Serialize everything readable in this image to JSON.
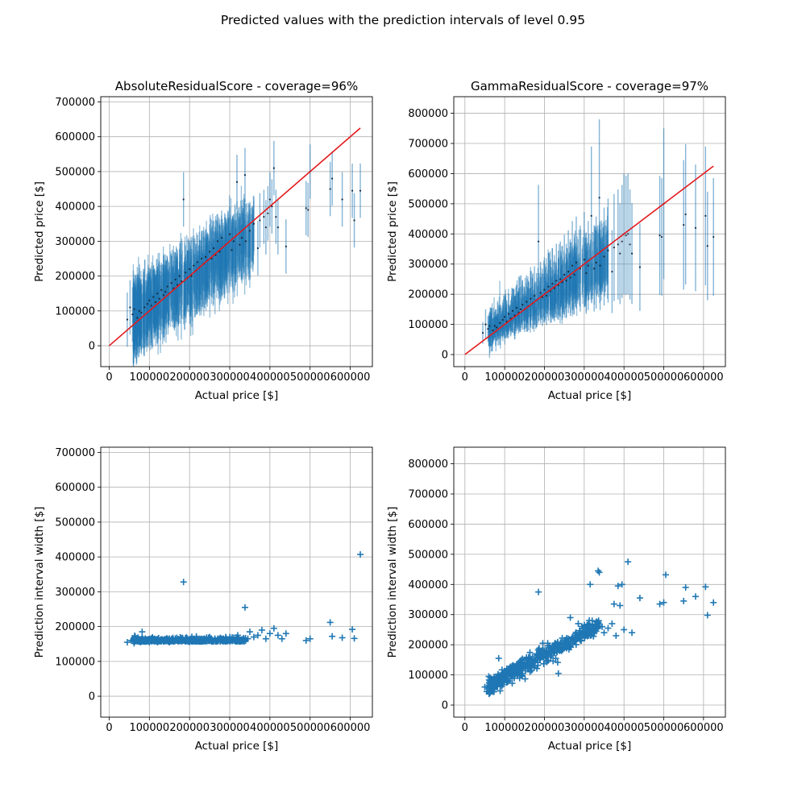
{
  "figure": {
    "title": "Predicted values with the prediction intervals of level 0.95"
  },
  "chart_data": [
    {
      "type": "scatter",
      "variant": "errorbar",
      "title": "AbsoluteResidualScore - coverage=96%",
      "xlabel": "Actual price [$]",
      "ylabel": "Predicted price [$]",
      "xlim": [
        -21000,
        655000
      ],
      "ylim": [
        -60000,
        715000
      ],
      "xticks": [
        0,
        100000,
        200000,
        300000,
        400000,
        500000,
        600000
      ],
      "yticks": [
        0,
        100000,
        200000,
        300000,
        400000,
        500000,
        600000,
        700000
      ],
      "grid": true,
      "reference_line": {
        "x": [
          0,
          625000
        ],
        "y": [
          0,
          625000
        ],
        "color": "#e41a1c"
      },
      "interval_style": "constant",
      "interval_halfwidth": 78000,
      "series_color": "#1f77b4",
      "points": [
        [
          45000,
          75000
        ],
        [
          52000,
          110000
        ],
        [
          58000,
          90000
        ],
        [
          62000,
          105000
        ],
        [
          70000,
          80000
        ],
        [
          75000,
          100000
        ],
        [
          80000,
          95000
        ],
        [
          88000,
          110000
        ],
        [
          95000,
          120000
        ],
        [
          100000,
          130000
        ],
        [
          105000,
          115000
        ],
        [
          110000,
          140000
        ],
        [
          115000,
          125000
        ],
        [
          120000,
          150000
        ],
        [
          125000,
          135000
        ],
        [
          130000,
          160000
        ],
        [
          135000,
          145000
        ],
        [
          140000,
          155000
        ],
        [
          145000,
          170000
        ],
        [
          150000,
          150000
        ],
        [
          155000,
          180000
        ],
        [
          160000,
          165000
        ],
        [
          165000,
          190000
        ],
        [
          170000,
          175000
        ],
        [
          175000,
          200000
        ],
        [
          180000,
          185000
        ],
        [
          185000,
          420000
        ],
        [
          190000,
          210000
        ],
        [
          195000,
          195000
        ],
        [
          200000,
          220000
        ],
        [
          205000,
          200000
        ],
        [
          210000,
          230000
        ],
        [
          215000,
          215000
        ],
        [
          220000,
          240000
        ],
        [
          225000,
          225000
        ],
        [
          230000,
          250000
        ],
        [
          235000,
          235000
        ],
        [
          240000,
          255000
        ],
        [
          245000,
          245000
        ],
        [
          250000,
          270000
        ],
        [
          255000,
          250000
        ],
        [
          260000,
          280000
        ],
        [
          265000,
          260000
        ],
        [
          270000,
          300000
        ],
        [
          275000,
          270000
        ],
        [
          280000,
          310000
        ],
        [
          290000,
          290000
        ],
        [
          300000,
          320000
        ],
        [
          305000,
          275000
        ],
        [
          310000,
          300000
        ],
        [
          318000,
          470000
        ],
        [
          325000,
          290000
        ],
        [
          330000,
          310000
        ],
        [
          338000,
          490000
        ],
        [
          340000,
          300000
        ],
        [
          350000,
          330000
        ],
        [
          360000,
          350000
        ],
        [
          370000,
          280000
        ],
        [
          375000,
          360000
        ],
        [
          385000,
          370000
        ],
        [
          390000,
          340000
        ],
        [
          395000,
          380000
        ],
        [
          400000,
          420000
        ],
        [
          405000,
          400000
        ],
        [
          410000,
          510000
        ],
        [
          415000,
          370000
        ],
        [
          420000,
          340000
        ],
        [
          440000,
          285000
        ],
        [
          490000,
          395000
        ],
        [
          495000,
          390000
        ],
        [
          500000,
          500000
        ],
        [
          550000,
          450000
        ],
        [
          555000,
          480000
        ],
        [
          580000,
          420000
        ],
        [
          605000,
          445000
        ],
        [
          610000,
          360000
        ],
        [
          625000,
          445000
        ]
      ]
    },
    {
      "type": "scatter",
      "variant": "errorbar",
      "title": "GammaResidualScore - coverage=97%",
      "xlabel": "Actual price [$]",
      "ylabel": "Predicted price [$]",
      "xlim": [
        -28000,
        655000
      ],
      "ylim": [
        -40000,
        855000
      ],
      "xticks": [
        0,
        100000,
        200000,
        300000,
        400000,
        500000,
        600000
      ],
      "yticks": [
        0,
        100000,
        200000,
        300000,
        400000,
        500000,
        600000,
        700000,
        800000
      ],
      "grid": true,
      "reference_line": {
        "x": [
          0,
          625000
        ],
        "y": [
          0,
          625000
        ],
        "color": "#e41a1c"
      },
      "interval_style": "proportional",
      "interval_halfwidth_ratio": 0.5,
      "series_color": "#1f77b4",
      "points": [
        [
          45000,
          72000
        ],
        [
          52000,
          100000
        ],
        [
          58000,
          85000
        ],
        [
          62000,
          95000
        ],
        [
          70000,
          80000
        ],
        [
          75000,
          95000
        ],
        [
          80000,
          90000
        ],
        [
          88000,
          105000
        ],
        [
          95000,
          115000
        ],
        [
          100000,
          125000
        ],
        [
          105000,
          110000
        ],
        [
          110000,
          135000
        ],
        [
          115000,
          120000
        ],
        [
          120000,
          145000
        ],
        [
          125000,
          130000
        ],
        [
          130000,
          155000
        ],
        [
          135000,
          140000
        ],
        [
          140000,
          150000
        ],
        [
          145000,
          165000
        ],
        [
          150000,
          150000
        ],
        [
          155000,
          175000
        ],
        [
          160000,
          160000
        ],
        [
          165000,
          185000
        ],
        [
          170000,
          170000
        ],
        [
          175000,
          195000
        ],
        [
          180000,
          180000
        ],
        [
          185000,
          375000
        ],
        [
          190000,
          205000
        ],
        [
          195000,
          190000
        ],
        [
          200000,
          215000
        ],
        [
          205000,
          195000
        ],
        [
          210000,
          225000
        ],
        [
          215000,
          210000
        ],
        [
          220000,
          235000
        ],
        [
          225000,
          220000
        ],
        [
          230000,
          245000
        ],
        [
          235000,
          230000
        ],
        [
          240000,
          250000
        ],
        [
          245000,
          240000
        ],
        [
          250000,
          265000
        ],
        [
          255000,
          245000
        ],
        [
          260000,
          275000
        ],
        [
          265000,
          255000
        ],
        [
          270000,
          295000
        ],
        [
          275000,
          265000
        ],
        [
          280000,
          305000
        ],
        [
          290000,
          285000
        ],
        [
          300000,
          315000
        ],
        [
          305000,
          270000
        ],
        [
          310000,
          295000
        ],
        [
          318000,
          460000
        ],
        [
          325000,
          285000
        ],
        [
          330000,
          305000
        ],
        [
          338000,
          520000
        ],
        [
          340000,
          295000
        ],
        [
          350000,
          325000
        ],
        [
          360000,
          345000
        ],
        [
          370000,
          275000
        ],
        [
          375000,
          355000
        ],
        [
          385000,
          365000
        ],
        [
          390000,
          335000
        ],
        [
          395000,
          375000
        ],
        [
          400000,
          400000
        ],
        [
          405000,
          395000
        ],
        [
          410000,
          400000
        ],
        [
          415000,
          365000
        ],
        [
          420000,
          335000
        ],
        [
          440000,
          290000
        ],
        [
          490000,
          395000
        ],
        [
          495000,
          390000
        ],
        [
          500000,
          500000
        ],
        [
          550000,
          430000
        ],
        [
          555000,
          465000
        ],
        [
          580000,
          420000
        ],
        [
          605000,
          460000
        ],
        [
          610000,
          360000
        ],
        [
          625000,
          390000
        ]
      ]
    },
    {
      "type": "scatter",
      "marker": "plus",
      "title": "",
      "xlabel": "Actual price [$]",
      "ylabel": "Prediction interval width [$]",
      "xlim": [
        -21000,
        655000
      ],
      "ylim": [
        -60000,
        715000
      ],
      "xticks": [
        0,
        100000,
        200000,
        300000,
        400000,
        500000,
        600000
      ],
      "yticks": [
        0,
        100000,
        200000,
        300000,
        400000,
        500000,
        600000,
        700000
      ],
      "grid": true,
      "series_color": "#1f77b4",
      "points": [
        [
          45000,
          155000
        ],
        [
          55000,
          160000
        ],
        [
          62000,
          152000
        ],
        [
          70000,
          158000
        ],
        [
          78000,
          155000
        ],
        [
          82000,
          185000
        ],
        [
          90000,
          157000
        ],
        [
          100000,
          155000
        ],
        [
          110000,
          160000
        ],
        [
          120000,
          155000
        ],
        [
          130000,
          158000
        ],
        [
          140000,
          162000
        ],
        [
          150000,
          155000
        ],
        [
          160000,
          158000
        ],
        [
          170000,
          160000
        ],
        [
          180000,
          165000
        ],
        [
          185000,
          328000
        ],
        [
          190000,
          158000
        ],
        [
          200000,
          156000
        ],
        [
          210000,
          162000
        ],
        [
          220000,
          158000
        ],
        [
          230000,
          165000
        ],
        [
          240000,
          160000
        ],
        [
          250000,
          170000
        ],
        [
          260000,
          158000
        ],
        [
          270000,
          165000
        ],
        [
          280000,
          160000
        ],
        [
          290000,
          170000
        ],
        [
          300000,
          165000
        ],
        [
          310000,
          168000
        ],
        [
          320000,
          175000
        ],
        [
          330000,
          160000
        ],
        [
          338000,
          255000
        ],
        [
          345000,
          165000
        ],
        [
          350000,
          185000
        ],
        [
          360000,
          170000
        ],
        [
          370000,
          175000
        ],
        [
          380000,
          190000
        ],
        [
          390000,
          165000
        ],
        [
          400000,
          180000
        ],
        [
          410000,
          195000
        ],
        [
          420000,
          175000
        ],
        [
          430000,
          165000
        ],
        [
          440000,
          180000
        ],
        [
          490000,
          160000
        ],
        [
          500000,
          165000
        ],
        [
          550000,
          212000
        ],
        [
          555000,
          172000
        ],
        [
          580000,
          168000
        ],
        [
          605000,
          192000
        ],
        [
          610000,
          166000
        ],
        [
          625000,
          407000
        ]
      ]
    },
    {
      "type": "scatter",
      "marker": "plus",
      "title": "",
      "xlabel": "Actual price [$]",
      "ylabel": "Prediction interval width [$]",
      "xlim": [
        -28000,
        655000
      ],
      "ylim": [
        -40000,
        855000
      ],
      "xticks": [
        0,
        100000,
        200000,
        300000,
        400000,
        500000,
        600000
      ],
      "yticks": [
        0,
        100000,
        200000,
        300000,
        400000,
        500000,
        600000,
        700000,
        800000
      ],
      "grid": true,
      "series_color": "#1f77b4",
      "points": [
        [
          50000,
          60000
        ],
        [
          55000,
          45000
        ],
        [
          60000,
          95000
        ],
        [
          65000,
          80000
        ],
        [
          70000,
          70000
        ],
        [
          75000,
          90000
        ],
        [
          80000,
          85000
        ],
        [
          85000,
          155000
        ],
        [
          90000,
          100000
        ],
        [
          95000,
          80000
        ],
        [
          100000,
          110000
        ],
        [
          105000,
          95000
        ],
        [
          110000,
          120000
        ],
        [
          115000,
          100000
        ],
        [
          120000,
          125000
        ],
        [
          125000,
          110000
        ],
        [
          130000,
          135000
        ],
        [
          135000,
          115000
        ],
        [
          140000,
          140000
        ],
        [
          145000,
          125000
        ],
        [
          150000,
          150000
        ],
        [
          155000,
          135000
        ],
        [
          160000,
          155000
        ],
        [
          165000,
          145000
        ],
        [
          170000,
          160000
        ],
        [
          175000,
          150000
        ],
        [
          180000,
          170000
        ],
        [
          185000,
          375000
        ],
        [
          190000,
          175000
        ],
        [
          195000,
          160000
        ],
        [
          200000,
          180000
        ],
        [
          205000,
          170000
        ],
        [
          210000,
          190000
        ],
        [
          215000,
          175000
        ],
        [
          220000,
          195000
        ],
        [
          225000,
          185000
        ],
        [
          230000,
          200000
        ],
        [
          235000,
          105000
        ],
        [
          240000,
          205000
        ],
        [
          245000,
          190000
        ],
        [
          250000,
          215000
        ],
        [
          255000,
          200000
        ],
        [
          260000,
          220000
        ],
        [
          265000,
          290000
        ],
        [
          270000,
          225000
        ],
        [
          275000,
          210000
        ],
        [
          280000,
          230000
        ],
        [
          285000,
          270000
        ],
        [
          290000,
          215000
        ],
        [
          300000,
          240000
        ],
        [
          310000,
          230000
        ],
        [
          315000,
          400000
        ],
        [
          320000,
          280000
        ],
        [
          330000,
          245000
        ],
        [
          335000,
          445000
        ],
        [
          338000,
          440000
        ],
        [
          345000,
          260000
        ],
        [
          350000,
          240000
        ],
        [
          360000,
          255000
        ],
        [
          370000,
          270000
        ],
        [
          375000,
          335000
        ],
        [
          380000,
          230000
        ],
        [
          385000,
          395000
        ],
        [
          390000,
          330000
        ],
        [
          395000,
          400000
        ],
        [
          400000,
          250000
        ],
        [
          410000,
          475000
        ],
        [
          420000,
          240000
        ],
        [
          440000,
          355000
        ],
        [
          490000,
          335000
        ],
        [
          500000,
          340000
        ],
        [
          505000,
          432000
        ],
        [
          550000,
          345000
        ],
        [
          555000,
          390000
        ],
        [
          580000,
          360000
        ],
        [
          605000,
          392000
        ],
        [
          610000,
          298000
        ],
        [
          625000,
          340000
        ]
      ]
    }
  ]
}
